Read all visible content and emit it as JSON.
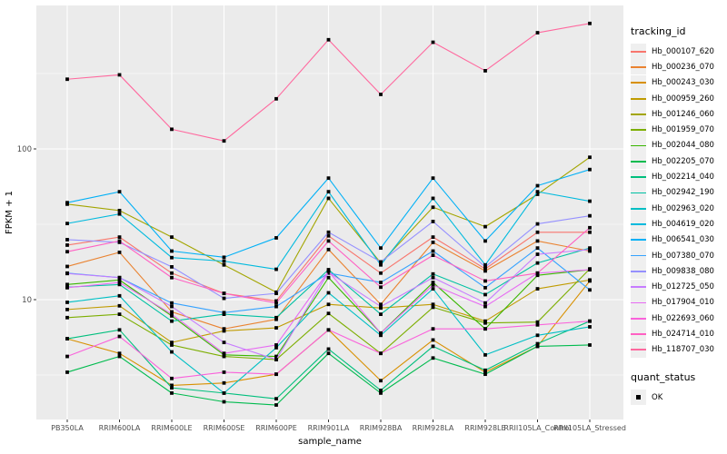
{
  "figure": {
    "y_axis_title": "FPKM + 1",
    "x_axis_title": "sample_name",
    "legend": {
      "tracking_title": "tracking_id",
      "quant_title": "quant_status",
      "quant_items": [
        {
          "label": "OK",
          "marker": "black-square"
        }
      ]
    },
    "style": {
      "panel_bg": "#EBEBEB",
      "grid_color": "#FFFFFF",
      "key_bg": "#EFEFEF",
      "tick_label_color": "#4D4D4D",
      "axis_title_color": "#000000",
      "point_color": "#000000"
    }
  },
  "chart_data": {
    "type": "line",
    "title": "",
    "xlabel": "sample_name",
    "ylabel": "FPKM + 1",
    "y_scale": "log10",
    "ylim": [
      1.6,
      830
    ],
    "y_ticks": [
      100,
      10
    ],
    "y_tick_labels": [
      "100",
      "10"
    ],
    "y_minor_gridlines": [
      3.1623,
      31.623,
      316.23
    ],
    "grid": "on",
    "legend_position": "right",
    "point_marker": "filled-black-square",
    "categories": [
      "PB350LA",
      "RRIM600LA",
      "RRIM600LE",
      "RRIM600SE",
      "RRIM600PE",
      "RRIM901LA",
      "RRIM928BA",
      "RRIM928LA",
      "RRIM928LE",
      "RRII105LA_Control",
      "RRII105LA_Stressed"
    ],
    "series": [
      {
        "name": "Hb_000107_620",
        "color": "#F8766D",
        "quant_status": "OK",
        "values": [
          23,
          26,
          15,
          11,
          9.8,
          26.5,
          15,
          26,
          16,
          28,
          28
        ]
      },
      {
        "name": "Hb_000236_070",
        "color": "#EA8331",
        "quant_status": "OK",
        "values": [
          16.6,
          20.6,
          8.3,
          6.4,
          7.4,
          21.5,
          9.3,
          24,
          15.5,
          24.5,
          21
        ]
      },
      {
        "name": "Hb_000243_030",
        "color": "#D89000",
        "quant_status": "OK",
        "values": [
          5.5,
          4.4,
          2.7,
          2.8,
          3.2,
          6.3,
          2.9,
          5.4,
          3.3,
          4.9,
          13.3
        ]
      },
      {
        "name": "Hb_000959_260",
        "color": "#C09B00",
        "quant_status": "OK",
        "values": [
          8.6,
          9.1,
          5.2,
          6.2,
          6.5,
          9.3,
          8.8,
          9.3,
          7.2,
          11.8,
          13.5
        ]
      },
      {
        "name": "Hb_001246_060",
        "color": "#A3A500",
        "quant_status": "OK",
        "values": [
          43,
          39,
          26,
          17,
          11.2,
          47,
          17.5,
          41,
          30.5,
          50,
          88
        ]
      },
      {
        "name": "Hb_001959_070",
        "color": "#7CAE00",
        "quant_status": "OK",
        "values": [
          7.6,
          8.0,
          5.0,
          4.2,
          4.0,
          8.1,
          4.4,
          8.9,
          7.0,
          7.1,
          16
        ]
      },
      {
        "name": "Hb_002044_080",
        "color": "#39B600",
        "quant_status": "OK",
        "values": [
          12.6,
          13.5,
          7.8,
          4.3,
          4.2,
          14,
          6.0,
          13,
          6.4,
          14.5,
          15.8
        ]
      },
      {
        "name": "Hb_002205_070",
        "color": "#00BB4E",
        "quant_status": "OK",
        "values": [
          3.3,
          4.2,
          2.4,
          2.1,
          2.0,
          4.4,
          2.4,
          4.1,
          3.2,
          4.9,
          5.0
        ]
      },
      {
        "name": "Hb_002214_040",
        "color": "#00BF7D",
        "quant_status": "OK",
        "values": [
          5.5,
          6.3,
          2.6,
          2.4,
          2.2,
          4.7,
          2.5,
          4.9,
          3.4,
          5.1,
          7.2
        ]
      },
      {
        "name": "Hb_002942_190",
        "color": "#00C1A3",
        "quant_status": "OK",
        "values": [
          12.1,
          12.6,
          7.2,
          8.0,
          7.6,
          15.8,
          8.0,
          14.8,
          10.8,
          17.5,
          22
        ]
      },
      {
        "name": "Hb_002963_020",
        "color": "#00BFC4",
        "quant_status": "OK",
        "values": [
          9.6,
          10.6,
          4.5,
          2.4,
          4.8,
          11.1,
          5.8,
          11.8,
          4.3,
          5.8,
          6.6
        ]
      },
      {
        "name": "Hb_004619_020",
        "color": "#00BADE",
        "quant_status": "OK",
        "values": [
          32,
          37,
          19,
          18,
          15.9,
          52,
          17,
          47,
          17,
          52,
          45
        ]
      },
      {
        "name": "Hb_006541_030",
        "color": "#00B0F6",
        "quant_status": "OK",
        "values": [
          44,
          52,
          21,
          19.1,
          25.7,
          64,
          22,
          64,
          24.5,
          57,
          73
        ]
      },
      {
        "name": "Hb_007380_070",
        "color": "#35A2FF",
        "quant_status": "OK",
        "values": [
          15,
          14,
          9.5,
          8.2,
          9.0,
          15.0,
          13,
          21,
          12,
          22,
          11.6
        ]
      },
      {
        "name": "Hb_009838_080",
        "color": "#9590FF",
        "quant_status": "OK",
        "values": [
          25,
          24,
          16.5,
          10.2,
          11,
          28,
          17.8,
          33,
          16.5,
          31.8,
          36
        ]
      },
      {
        "name": "Hb_012725_050",
        "color": "#C77CFF",
        "quant_status": "OK",
        "values": [
          14.9,
          14,
          9.0,
          5.2,
          4.0,
          15.2,
          9.0,
          14,
          9.5,
          20,
          21.5
        ]
      },
      {
        "name": "Hb_017904_010",
        "color": "#E76BF3",
        "quant_status": "OK",
        "values": [
          12,
          13,
          8.0,
          4.4,
          5.0,
          15.4,
          6.0,
          12.5,
          9.0,
          15,
          15.8
        ]
      },
      {
        "name": "Hb_022693_060",
        "color": "#FA62DB",
        "quant_status": "OK",
        "values": [
          4.2,
          5.7,
          3.0,
          3.3,
          3.2,
          6.3,
          4.4,
          6.4,
          6.4,
          6.8,
          7.2
        ]
      },
      {
        "name": "Hb_024714_010",
        "color": "#FF61C3",
        "quant_status": "OK",
        "values": [
          20.8,
          24.5,
          14,
          11,
          9.5,
          24.5,
          12.1,
          19.7,
          13.3,
          15,
          30
        ]
      },
      {
        "name": "Hb_118707_030",
        "color": "#FF689E",
        "quant_status": "OK",
        "values": [
          290,
          310,
          135,
          113,
          215,
          530,
          230,
          510,
          330,
          590,
          680
        ]
      }
    ]
  }
}
